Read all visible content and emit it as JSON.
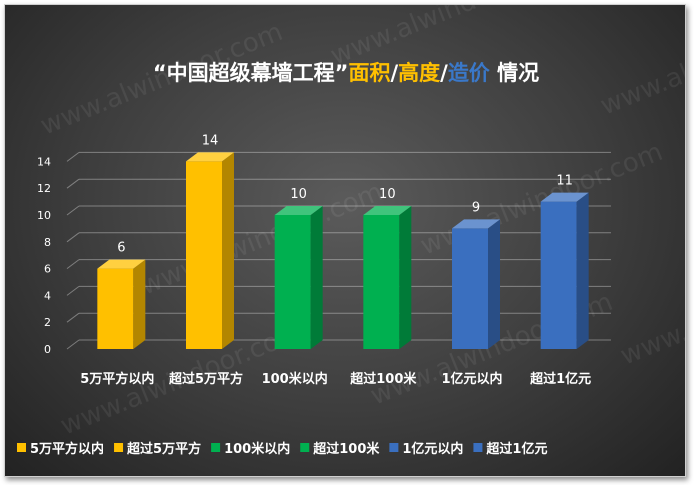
{
  "title": {
    "parts": [
      {
        "text": "“中国超级幕墙工程”",
        "color": "#ffffff"
      },
      {
        "text": "面积",
        "color": "#ffc000"
      },
      {
        "text": "/",
        "color": "#ffffff"
      },
      {
        "text": "高度",
        "color": "#ffc000"
      },
      {
        "text": "/",
        "color": "#ffffff"
      },
      {
        "text": "造价",
        "color": "#3a78c9"
      },
      {
        "text": " 情况",
        "color": "#ffffff"
      }
    ]
  },
  "watermark": "www.alwindoor.com",
  "colors": {
    "yellow": "#ffc000",
    "green": "#00b050",
    "blue": "#3a6fbf"
  },
  "chart_data": {
    "type": "bar",
    "title": "“中国超级幕墙工程”面积/高度/造价 情况",
    "categories": [
      "5万平方以内",
      "超过5万平方",
      "100米以内",
      "超过100米",
      "1亿元以内",
      "超过1亿元"
    ],
    "values": [
      6,
      14,
      10,
      10,
      9,
      11
    ],
    "bar_colors": [
      "#ffc000",
      "#ffc000",
      "#00b050",
      "#00b050",
      "#3a6fbf",
      "#3a6fbf"
    ],
    "y_ticks": [
      "0",
      "2",
      "4",
      "6",
      "8",
      "10",
      "12",
      "14"
    ],
    "ylim": [
      0,
      14
    ],
    "grid": true,
    "legend_position": "bottom",
    "data_labels": [
      "6",
      "14",
      "10",
      "10",
      "9",
      "11"
    ]
  },
  "legend": {
    "items": [
      {
        "label": "5万平方以内",
        "color": "#ffc000"
      },
      {
        "label": "超过5万平方",
        "color": "#ffc000"
      },
      {
        "label": "100米以内",
        "color": "#00b050"
      },
      {
        "label": "超过100米",
        "color": "#00b050"
      },
      {
        "label": "1亿元以内",
        "color": "#3a6fbf"
      },
      {
        "label": "超过1亿元",
        "color": "#3a6fbf"
      }
    ]
  }
}
